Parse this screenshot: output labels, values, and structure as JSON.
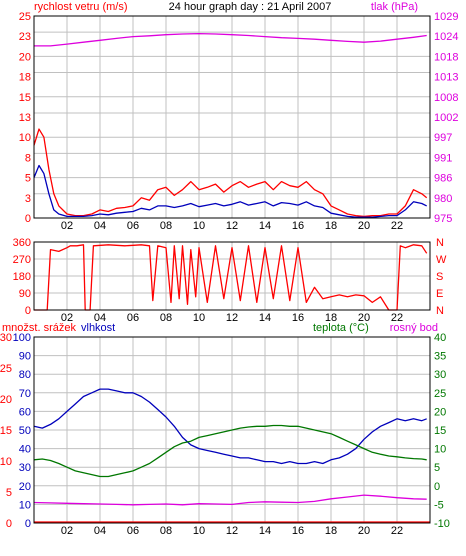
{
  "colors": {
    "red": "#ff0000",
    "magenta": "#dd00dd",
    "blue": "#0000bb",
    "green": "#007700",
    "grid": "#c0c0c0",
    "frame": "#000000",
    "text": "#000000"
  },
  "x_ticks": [
    "02",
    "04",
    "06",
    "08",
    "10",
    "12",
    "14",
    "16",
    "18",
    "20",
    "22"
  ],
  "chart_data": [
    {
      "type": "line",
      "title": "24 hour graph day : 21 April 2007",
      "left_label": "rychlost vetru (m/s)",
      "right_label": "tlak (hPa)",
      "grid": true,
      "xlim": [
        0,
        24
      ],
      "ylim_left": [
        0,
        25
      ],
      "ylim_right": [
        975,
        1029
      ],
      "left_ticks": [
        "25",
        "23",
        "20",
        "18",
        "15",
        "13",
        "10",
        "8",
        "5",
        "3",
        "0"
      ],
      "left_tick_values": [
        25,
        23,
        20,
        18,
        15,
        13,
        10,
        8,
        5,
        3,
        0
      ],
      "right_ticks": [
        "1029",
        "1024",
        "1018",
        "1013",
        "1008",
        "1002",
        "997",
        "991",
        "986",
        "980",
        "975"
      ],
      "series": [
        {
          "name": "",
          "axis": "left",
          "color": "#ff0000",
          "x": [
            0,
            0.3,
            0.6,
            0.9,
            1.2,
            1.5,
            2.0,
            2.5,
            3.0,
            3.5,
            4.0,
            4.5,
            5.0,
            5.5,
            6.0,
            6.5,
            7.0,
            7.5,
            8.0,
            8.5,
            9.0,
            9.5,
            10.0,
            10.5,
            11.0,
            11.5,
            12.0,
            12.5,
            13.0,
            13.5,
            14.0,
            14.5,
            15.0,
            15.5,
            16.0,
            16.5,
            17.0,
            17.5,
            18.0,
            18.5,
            19.0,
            19.5,
            20.0,
            20.5,
            21.0,
            21.5,
            22.0,
            22.5,
            23.0,
            23.5,
            23.8
          ],
          "values": [
            9,
            11,
            10,
            6,
            3,
            1.5,
            0.5,
            0.3,
            0.3,
            0.5,
            1,
            0.8,
            1.2,
            1.3,
            1.5,
            2.5,
            2.2,
            3.5,
            3.8,
            2.8,
            3.5,
            4.5,
            3.5,
            3.8,
            4.2,
            3.2,
            4.0,
            4.5,
            3.8,
            4.2,
            4.5,
            3.5,
            4.5,
            4.0,
            3.8,
            4.5,
            3.5,
            3.0,
            1.5,
            1.0,
            0.5,
            0.3,
            0.2,
            0.3,
            0.3,
            0.5,
            0.5,
            1.5,
            3.5,
            3.0,
            2.5
          ]
        },
        {
          "name": "",
          "axis": "left",
          "color": "#0000bb",
          "x": [
            0,
            0.3,
            0.6,
            0.9,
            1.2,
            1.5,
            2.0,
            2.5,
            3.0,
            3.5,
            4.0,
            4.5,
            5.0,
            5.5,
            6.0,
            6.5,
            7.0,
            7.5,
            8.0,
            8.5,
            9.0,
            9.5,
            10.0,
            10.5,
            11.0,
            11.5,
            12.0,
            12.5,
            13.0,
            13.5,
            14.0,
            14.5,
            15.0,
            15.5,
            16.0,
            16.5,
            17.0,
            17.5,
            18.0,
            18.5,
            19.0,
            19.5,
            20.0,
            20.5,
            21.0,
            21.5,
            22.0,
            22.5,
            23.0,
            23.5,
            23.8
          ],
          "values": [
            5,
            6.5,
            5.5,
            3,
            1,
            0.5,
            0.2,
            0.2,
            0.2,
            0.3,
            0.5,
            0.4,
            0.6,
            0.7,
            0.8,
            1.2,
            1.0,
            1.5,
            1.5,
            1.3,
            1.5,
            1.8,
            1.4,
            1.6,
            1.8,
            1.5,
            1.7,
            2.0,
            1.6,
            1.8,
            2.0,
            1.5,
            1.9,
            1.8,
            1.6,
            2.0,
            1.5,
            1.3,
            0.6,
            0.4,
            0.2,
            0.1,
            0.1,
            0.1,
            0.2,
            0.3,
            0.3,
            1.0,
            2.0,
            1.8,
            1.5
          ]
        },
        {
          "name": "",
          "axis": "right",
          "color": "#dd00dd",
          "x": [
            0,
            1,
            2,
            3,
            4,
            5,
            6,
            7,
            8,
            9,
            10,
            11,
            12,
            13,
            14,
            15,
            16,
            17,
            18,
            19,
            20,
            21,
            22,
            23,
            23.8
          ],
          "values": [
            1021,
            1021,
            1021.5,
            1022,
            1022.5,
            1023,
            1023.5,
            1023.7,
            1024,
            1024.2,
            1024.3,
            1024.2,
            1024,
            1023.8,
            1023.5,
            1023.2,
            1023,
            1022.8,
            1022.5,
            1022.2,
            1022,
            1022.3,
            1022.8,
            1023.3,
            1023.8
          ]
        }
      ]
    },
    {
      "type": "line",
      "title": "",
      "grid": true,
      "xlim": [
        0,
        24
      ],
      "ylim_left": [
        0,
        360
      ],
      "left_ticks": [
        "360",
        "270",
        "180",
        "90",
        "0"
      ],
      "left_tick_values": [
        360,
        270,
        180,
        90,
        0
      ],
      "right_ticks": [
        "N",
        "W",
        "S",
        "E",
        "N"
      ],
      "series": [
        {
          "name": "",
          "axis": "left",
          "color": "#ff0000",
          "x": [
            0,
            0.8,
            1.0,
            1.5,
            2.0,
            2.2,
            2.6,
            3.0,
            3.1,
            3.4,
            3.6,
            4.5,
            5.5,
            6.5,
            7.0,
            7.2,
            7.5,
            8.0,
            8.3,
            8.5,
            8.8,
            9.0,
            9.3,
            9.5,
            9.8,
            10.0,
            10.5,
            11.0,
            11.5,
            12.0,
            12.5,
            13.0,
            13.5,
            14.0,
            14.5,
            15.0,
            15.5,
            16.0,
            16.5,
            17.0,
            17.5,
            18.0,
            18.5,
            19.0,
            19.5,
            20.0,
            20.5,
            21.0,
            21.5,
            22.0,
            22.2,
            22.5,
            23.0,
            23.5,
            23.8
          ],
          "values": [
            0,
            0,
            320,
            310,
            330,
            340,
            340,
            345,
            0,
            0,
            340,
            345,
            340,
            345,
            340,
            50,
            340,
            330,
            40,
            340,
            60,
            340,
            30,
            320,
            70,
            330,
            40,
            340,
            60,
            330,
            50,
            340,
            40,
            330,
            60,
            340,
            50,
            330,
            40,
            120,
            60,
            70,
            80,
            70,
            80,
            75,
            40,
            70,
            0,
            0,
            340,
            330,
            345,
            340,
            300
          ]
        }
      ]
    },
    {
      "type": "line",
      "title": "",
      "grid": true,
      "xlim": [
        0,
        24
      ],
      "ylim_left": [
        0,
        100
      ],
      "ylim_right": [
        -10,
        40
      ],
      "far_left_label": "množst. srážek",
      "left_label": "vlhkost",
      "right_label": "teplota (°C)",
      "right_label_2": "rosný bod",
      "far_left_ticks": [
        "30",
        "25",
        "20",
        "15",
        "10",
        "5",
        "0"
      ],
      "left_ticks": [
        "100",
        "90",
        "80",
        "70",
        "60",
        "50",
        "40",
        "30",
        "20",
        "10",
        "0"
      ],
      "left_tick_values": [
        100,
        90,
        80,
        70,
        60,
        50,
        40,
        30,
        20,
        10,
        0
      ],
      "right_ticks": [
        "40",
        "35",
        "30",
        "25",
        "20",
        "15",
        "10",
        "5",
        "0",
        "-5",
        "-10"
      ],
      "right_tick_values": [
        40,
        35,
        30,
        25,
        20,
        15,
        10,
        5,
        0,
        -5,
        -10
      ],
      "series": [
        {
          "name": "",
          "axis": "left",
          "color": "#0000bb",
          "x": [
            0,
            0.5,
            1.0,
            1.5,
            2.0,
            2.5,
            3.0,
            3.5,
            4.0,
            4.5,
            5.0,
            5.5,
            6.0,
            6.5,
            7.0,
            7.5,
            8.0,
            8.5,
            9.0,
            9.5,
            10.0,
            10.5,
            11.0,
            11.5,
            12.0,
            12.5,
            13.0,
            13.5,
            14.0,
            14.5,
            15.0,
            15.5,
            16.0,
            16.5,
            17.0,
            17.5,
            18.0,
            18.5,
            19.0,
            19.5,
            20.0,
            20.5,
            21.0,
            21.5,
            22.0,
            22.5,
            23.0,
            23.5,
            23.8
          ],
          "values": [
            52,
            51,
            53,
            56,
            60,
            64,
            68,
            70,
            72,
            72,
            71,
            70,
            70,
            68,
            65,
            61,
            57,
            52,
            46,
            42,
            40,
            39,
            38,
            37,
            36,
            35,
            35,
            34,
            33,
            33,
            32,
            33,
            32,
            32,
            33,
            32,
            34,
            35,
            37,
            40,
            45,
            49,
            52,
            54,
            56,
            55,
            56,
            55,
            56
          ]
        },
        {
          "name": "",
          "axis": "right",
          "color": "#007700",
          "x": [
            0,
            0.5,
            1.0,
            1.5,
            2.0,
            2.5,
            3.0,
            3.5,
            4.0,
            4.5,
            5.0,
            5.5,
            6.0,
            6.5,
            7.0,
            7.5,
            8.0,
            8.5,
            9.0,
            9.5,
            10.0,
            10.5,
            11.0,
            11.5,
            12.0,
            12.5,
            13.0,
            13.5,
            14.0,
            14.5,
            15.0,
            15.5,
            16.0,
            16.5,
            17.0,
            17.5,
            18.0,
            18.5,
            19.0,
            19.5,
            20.0,
            20.5,
            21.0,
            21.5,
            22.0,
            22.5,
            23.0,
            23.5,
            23.8
          ],
          "values": [
            7,
            7.2,
            6.8,
            6,
            5,
            4,
            3.5,
            3,
            2.5,
            2.5,
            3,
            3.5,
            4,
            5,
            6,
            7.5,
            9,
            10.5,
            11.5,
            12,
            13,
            13.5,
            14,
            14.5,
            15,
            15.5,
            15.8,
            16,
            16,
            16.2,
            16.2,
            16,
            16,
            15.5,
            15,
            14.5,
            14,
            13,
            12,
            11,
            10,
            9,
            8.5,
            8,
            7.8,
            7.5,
            7.3,
            7.2,
            7
          ]
        },
        {
          "name": "",
          "axis": "right",
          "color": "#dd00dd",
          "x": [
            0,
            1,
            2,
            3,
            4,
            5,
            6,
            7,
            8,
            9,
            10,
            11,
            12,
            13,
            14,
            15,
            16,
            17,
            18,
            19,
            20,
            21,
            22,
            23,
            23.8
          ],
          "values": [
            -4.5,
            -4.6,
            -4.7,
            -4.8,
            -4.9,
            -5,
            -5.1,
            -5,
            -4.9,
            -5.1,
            -4.8,
            -4.9,
            -5,
            -4.5,
            -4.3,
            -4.4,
            -4.5,
            -4.2,
            -3.5,
            -3.0,
            -2.5,
            -2.8,
            -3.2,
            -3.5,
            -3.6
          ]
        },
        {
          "name": "",
          "axis": "far_left",
          "color": "#ff0000",
          "x": [
            0,
            24
          ],
          "values": [
            0,
            0
          ]
        }
      ]
    }
  ]
}
